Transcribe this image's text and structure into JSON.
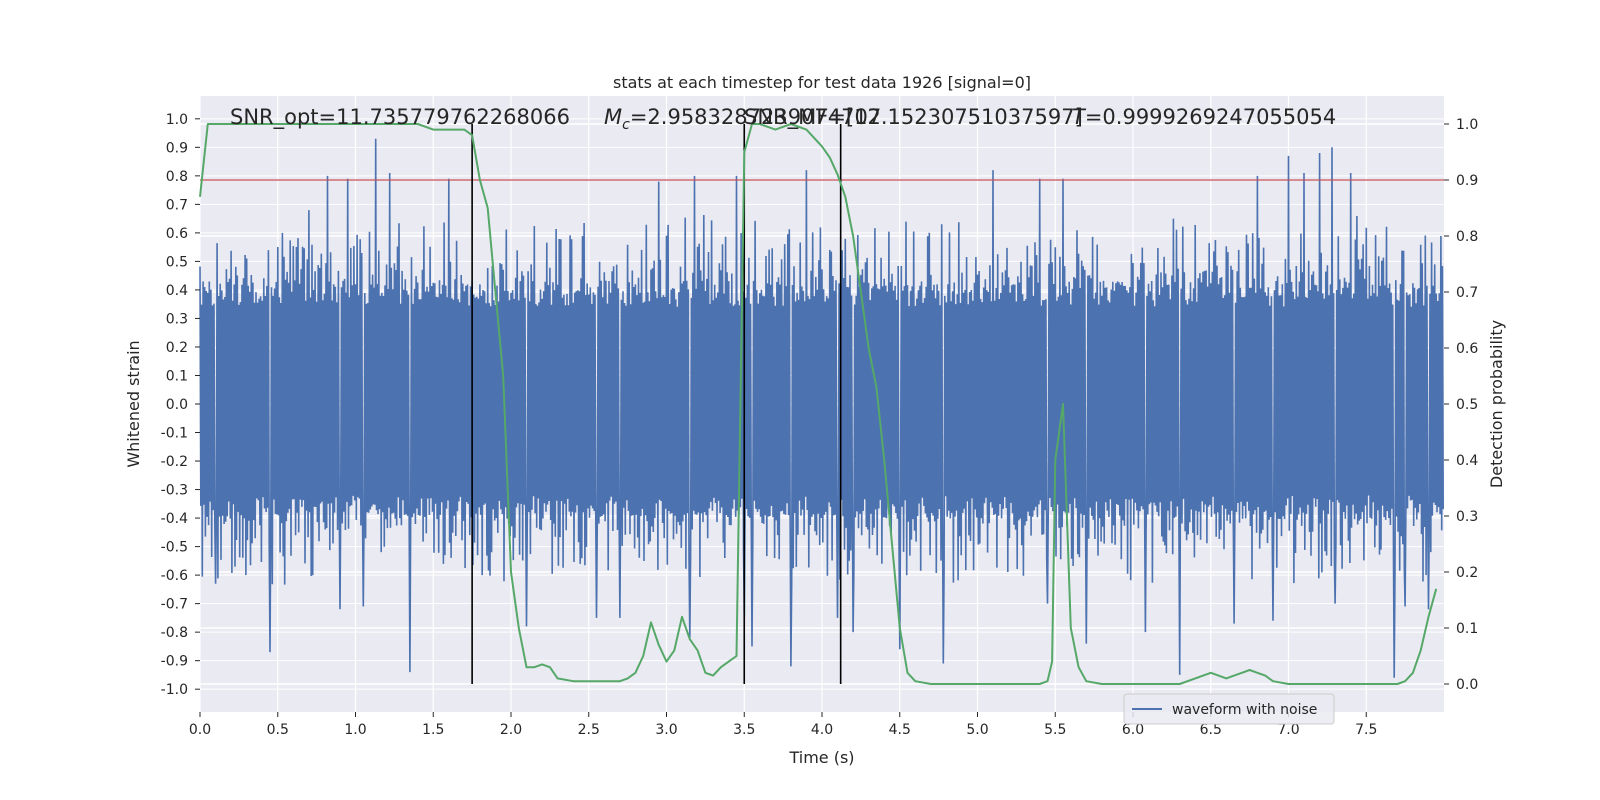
{
  "chart_data": {
    "type": "line",
    "title": "stats at each timestep for test data 1926 [signal=0]",
    "xlabel": "Time (s)",
    "ylabel_left": "Whitened strain",
    "ylabel_right": "Detection probability",
    "xlim": [
      0.0,
      8.0
    ],
    "ylim_left": [
      -1.08,
      1.08
    ],
    "ylim_right": [
      -0.05,
      1.05
    ],
    "x_ticks": [
      "0.0",
      "0.5",
      "1.0",
      "1.5",
      "2.0",
      "2.5",
      "3.0",
      "3.5",
      "4.0",
      "4.5",
      "5.0",
      "5.5",
      "6.0",
      "6.5",
      "7.0",
      "7.5"
    ],
    "y_ticks_left": [
      "1.0",
      "0.9",
      "0.8",
      "0.7",
      "0.6",
      "0.5",
      "0.4",
      "0.3",
      "0.2",
      "0.1",
      "0.0",
      "-0.1",
      "-0.2",
      "-0.3",
      "-0.4",
      "-0.5",
      "-0.6",
      "-0.7",
      "-0.8",
      "-0.9",
      "-1.0"
    ],
    "y_ticks_right": [
      "1.0",
      "0.9",
      "0.8",
      "0.7",
      "0.6",
      "0.5",
      "0.4",
      "0.3",
      "0.2",
      "0.1",
      "0.0"
    ],
    "annotations": {
      "snr": "SNR_opt=11.735779762268066",
      "mc_symbol": "M",
      "mc_sub": "c",
      "mc_value": "=2.9583287239074707",
      "snr_mf": "SNR_MF=[12.15230751037597]",
      "t_symbol": "T",
      "t_value": "=0.9999269247055054"
    },
    "legend": {
      "placement": "lower-right",
      "entries": [
        "waveform with noise"
      ]
    },
    "grid": true,
    "threshold": 0.9,
    "vlines": [
      1.75,
      3.5,
      4.12
    ],
    "series": [
      {
        "name": "waveform with noise",
        "axis": "left",
        "color": "#4c72b0",
        "sample_rate": 200,
        "envelope_upper": 0.42,
        "envelope_lower": -0.4,
        "spikes": [
          {
            "x": 0.45,
            "y": 0.88
          },
          {
            "x": 0.7,
            "y": 0.68
          },
          {
            "x": 0.82,
            "y": 0.8
          },
          {
            "x": 0.95,
            "y": 0.79
          },
          {
            "x": 1.13,
            "y": 0.93
          },
          {
            "x": 1.22,
            "y": 0.81
          },
          {
            "x": 1.35,
            "y": 0.86
          },
          {
            "x": 1.6,
            "y": 0.79
          },
          {
            "x": 2.95,
            "y": 0.78
          },
          {
            "x": 3.18,
            "y": 0.8
          },
          {
            "x": 3.45,
            "y": 0.8
          },
          {
            "x": 3.9,
            "y": 0.82
          },
          {
            "x": 4.1,
            "y": 0.8
          },
          {
            "x": 5.1,
            "y": 0.82
          },
          {
            "x": 5.4,
            "y": 0.79
          },
          {
            "x": 5.55,
            "y": 0.79
          },
          {
            "x": 6.8,
            "y": 0.8
          },
          {
            "x": 7.0,
            "y": 0.87
          },
          {
            "x": 7.1,
            "y": 0.81
          },
          {
            "x": 7.2,
            "y": 0.88
          },
          {
            "x": 7.28,
            "y": 0.9
          },
          {
            "x": 7.4,
            "y": 0.81
          },
          {
            "x": 0.1,
            "y": -0.63
          },
          {
            "x": 0.45,
            "y": -0.87
          },
          {
            "x": 0.9,
            "y": -0.72
          },
          {
            "x": 1.05,
            "y": -0.71
          },
          {
            "x": 1.35,
            "y": -0.94
          },
          {
            "x": 2.1,
            "y": -0.78
          },
          {
            "x": 2.55,
            "y": -0.75
          },
          {
            "x": 2.7,
            "y": -0.75
          },
          {
            "x": 3.15,
            "y": -0.82
          },
          {
            "x": 3.5,
            "y": -0.75
          },
          {
            "x": 3.55,
            "y": -0.85
          },
          {
            "x": 3.8,
            "y": -0.92
          },
          {
            "x": 4.1,
            "y": -0.75
          },
          {
            "x": 4.2,
            "y": -0.8
          },
          {
            "x": 4.5,
            "y": -0.86
          },
          {
            "x": 4.78,
            "y": -0.91
          },
          {
            "x": 5.45,
            "y": -0.7
          },
          {
            "x": 5.7,
            "y": -0.84
          },
          {
            "x": 6.08,
            "y": -0.8
          },
          {
            "x": 6.3,
            "y": -0.95
          },
          {
            "x": 6.65,
            "y": -0.77
          },
          {
            "x": 6.9,
            "y": -0.76
          },
          {
            "x": 7.3,
            "y": -0.7
          },
          {
            "x": 7.68,
            "y": -0.96
          },
          {
            "x": 7.75,
            "y": -0.71
          },
          {
            "x": 7.9,
            "y": -0.72
          }
        ]
      },
      {
        "name": "detection probability",
        "axis": "right",
        "color": "#55a868",
        "x": [
          0.0,
          0.05,
          0.1,
          0.2,
          0.4,
          0.6,
          0.8,
          1.0,
          1.2,
          1.4,
          1.5,
          1.6,
          1.7,
          1.75,
          1.8,
          1.85,
          1.9,
          1.95,
          2.0,
          2.05,
          2.1,
          2.15,
          2.2,
          2.25,
          2.3,
          2.4,
          2.5,
          2.6,
          2.7,
          2.75,
          2.8,
          2.85,
          2.9,
          2.95,
          3.0,
          3.05,
          3.1,
          3.15,
          3.2,
          3.25,
          3.3,
          3.35,
          3.4,
          3.45,
          3.5,
          3.52,
          3.55,
          3.6,
          3.7,
          3.8,
          3.9,
          4.0,
          4.05,
          4.1,
          4.15,
          4.2,
          4.25,
          4.3,
          4.35,
          4.4,
          4.45,
          4.5,
          4.55,
          4.6,
          4.7,
          4.8,
          4.9,
          5.0,
          5.1,
          5.2,
          5.3,
          5.4,
          5.45,
          5.48,
          5.5,
          5.55,
          5.6,
          5.65,
          5.7,
          5.8,
          5.9,
          6.0,
          6.1,
          6.2,
          6.3,
          6.4,
          6.5,
          6.55,
          6.6,
          6.65,
          6.7,
          6.75,
          6.8,
          6.85,
          6.9,
          7.0,
          7.2,
          7.4,
          7.5,
          7.6,
          7.7,
          7.75,
          7.8,
          7.85,
          7.9,
          7.95
        ],
        "values": [
          0.87,
          1.0,
          1.0,
          1.0,
          1.0,
          1.0,
          1.0,
          1.0,
          1.0,
          1.0,
          0.99,
          0.99,
          0.99,
          0.98,
          0.9,
          0.85,
          0.7,
          0.55,
          0.2,
          0.1,
          0.03,
          0.03,
          0.035,
          0.03,
          0.01,
          0.005,
          0.005,
          0.005,
          0.005,
          0.01,
          0.02,
          0.05,
          0.11,
          0.07,
          0.04,
          0.06,
          0.12,
          0.08,
          0.06,
          0.02,
          0.015,
          0.03,
          0.04,
          0.05,
          0.95,
          0.97,
          1.0,
          1.0,
          0.99,
          1.0,
          0.99,
          0.96,
          0.94,
          0.91,
          0.87,
          0.8,
          0.7,
          0.6,
          0.53,
          0.4,
          0.25,
          0.1,
          0.02,
          0.005,
          0.0,
          0.0,
          0.0,
          0.0,
          0.0,
          0.0,
          0.0,
          0.0,
          0.005,
          0.04,
          0.4,
          0.5,
          0.1,
          0.03,
          0.005,
          0.0,
          0.0,
          0.0,
          0.0,
          0.0,
          0.0,
          0.01,
          0.02,
          0.015,
          0.01,
          0.015,
          0.02,
          0.025,
          0.02,
          0.015,
          0.005,
          0.0,
          0.0,
          0.0,
          0.0,
          0.0,
          0.0,
          0.005,
          0.02,
          0.06,
          0.12,
          0.17
        ]
      }
    ]
  }
}
